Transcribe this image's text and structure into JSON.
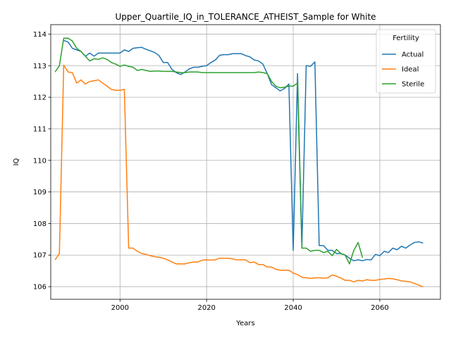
{
  "chart_data": {
    "type": "line",
    "title": "Upper_Quartile_IQ_in_TOLERANCE_ATHEIST_Sample for White",
    "xlabel": "Years",
    "ylabel": "IQ",
    "xlim": [
      1984,
      2074
    ],
    "ylim": [
      105.6,
      114.3
    ],
    "xticks": [
      1980,
      2000,
      2020,
      2040,
      2060
    ],
    "yticks": [
      106,
      107,
      108,
      109,
      110,
      111,
      112,
      113,
      114
    ],
    "grid": true,
    "legend": {
      "title": "Fertility",
      "position": "top-right"
    },
    "series": [
      {
        "name": "Actual",
        "color": "#1f77b4",
        "points": [
          [
            1987,
            113.8
          ],
          [
            1988,
            113.75
          ],
          [
            1989,
            113.55
          ],
          [
            1990,
            113.5
          ],
          [
            1991,
            113.45
          ],
          [
            1992,
            113.3
          ],
          [
            1993,
            113.4
          ],
          [
            1994,
            113.3
          ],
          [
            1995,
            113.4
          ],
          [
            1996,
            113.4
          ],
          [
            1997,
            113.4
          ],
          [
            1998,
            113.4
          ],
          [
            1999,
            113.4
          ],
          [
            2000,
            113.4
          ],
          [
            2001,
            113.5
          ],
          [
            2002,
            113.45
          ],
          [
            2003,
            113.55
          ],
          [
            2004,
            113.57
          ],
          [
            2005,
            113.58
          ],
          [
            2006,
            113.52
          ],
          [
            2007,
            113.47
          ],
          [
            2008,
            113.42
          ],
          [
            2009,
            113.32
          ],
          [
            2010,
            113.1
          ],
          [
            2011,
            113.1
          ],
          [
            2012,
            112.88
          ],
          [
            2013,
            112.78
          ],
          [
            2014,
            112.72
          ],
          [
            2015,
            112.8
          ],
          [
            2016,
            112.9
          ],
          [
            2017,
            112.95
          ],
          [
            2018,
            112.95
          ],
          [
            2019,
            112.98
          ],
          [
            2020,
            113.0
          ],
          [
            2021,
            113.1
          ],
          [
            2022,
            113.18
          ],
          [
            2023,
            113.33
          ],
          [
            2024,
            113.35
          ],
          [
            2025,
            113.35
          ],
          [
            2026,
            113.38
          ],
          [
            2027,
            113.38
          ],
          [
            2028,
            113.38
          ],
          [
            2029,
            113.32
          ],
          [
            2030,
            113.28
          ],
          [
            2031,
            113.18
          ],
          [
            2032,
            113.15
          ],
          [
            2033,
            113.05
          ],
          [
            2034,
            112.75
          ],
          [
            2035,
            112.4
          ],
          [
            2036,
            112.3
          ],
          [
            2037,
            112.2
          ],
          [
            2038,
            112.28
          ],
          [
            2039,
            112.42
          ],
          [
            2040,
            107.15
          ],
          [
            2041,
            112.75
          ],
          [
            2042,
            107.25
          ],
          [
            2043,
            113.0
          ],
          [
            2044,
            112.98
          ],
          [
            2045,
            113.12
          ],
          [
            2046,
            107.3
          ],
          [
            2047,
            107.3
          ],
          [
            2048,
            107.15
          ],
          [
            2049,
            107.15
          ],
          [
            2050,
            107.05
          ],
          [
            2051,
            107.05
          ],
          [
            2052,
            107.0
          ],
          [
            2053,
            106.9
          ],
          [
            2054,
            106.82
          ],
          [
            2055,
            106.85
          ],
          [
            2056,
            106.82
          ],
          [
            2057,
            106.86
          ],
          [
            2058,
            106.85
          ],
          [
            2059,
            107.02
          ],
          [
            2060,
            106.98
          ],
          [
            2061,
            107.12
          ],
          [
            2062,
            107.08
          ],
          [
            2063,
            107.22
          ],
          [
            2064,
            107.17
          ],
          [
            2065,
            107.28
          ],
          [
            2066,
            107.22
          ],
          [
            2067,
            107.32
          ],
          [
            2068,
            107.4
          ],
          [
            2069,
            107.42
          ],
          [
            2070,
            107.38
          ]
        ]
      },
      {
        "name": "Ideal",
        "color": "#ff7f0e",
        "points": [
          [
            1985,
            106.85
          ],
          [
            1986,
            107.05
          ],
          [
            1987,
            113.02
          ],
          [
            1988,
            112.8
          ],
          [
            1989,
            112.78
          ],
          [
            1990,
            112.45
          ],
          [
            1991,
            112.55
          ],
          [
            1992,
            112.42
          ],
          [
            1993,
            112.5
          ],
          [
            1994,
            112.52
          ],
          [
            1995,
            112.55
          ],
          [
            1996,
            112.45
          ],
          [
            1997,
            112.35
          ],
          [
            1998,
            112.25
          ],
          [
            1999,
            112.22
          ],
          [
            2000,
            112.22
          ],
          [
            2001,
            112.25
          ],
          [
            2002,
            107.22
          ],
          [
            2003,
            107.22
          ],
          [
            2004,
            107.12
          ],
          [
            2005,
            107.05
          ],
          [
            2006,
            107.02
          ],
          [
            2007,
            106.98
          ],
          [
            2008,
            106.95
          ],
          [
            2009,
            106.93
          ],
          [
            2010,
            106.9
          ],
          [
            2011,
            106.85
          ],
          [
            2012,
            106.78
          ],
          [
            2013,
            106.72
          ],
          [
            2014,
            106.72
          ],
          [
            2015,
            106.72
          ],
          [
            2016,
            106.76
          ],
          [
            2017,
            106.78
          ],
          [
            2018,
            106.78
          ],
          [
            2019,
            106.84
          ],
          [
            2020,
            106.85
          ],
          [
            2021,
            106.84
          ],
          [
            2022,
            106.85
          ],
          [
            2023,
            106.9
          ],
          [
            2024,
            106.9
          ],
          [
            2025,
            106.9
          ],
          [
            2026,
            106.88
          ],
          [
            2027,
            106.85
          ],
          [
            2028,
            106.85
          ],
          [
            2029,
            106.85
          ],
          [
            2030,
            106.76
          ],
          [
            2031,
            106.78
          ],
          [
            2032,
            106.7
          ],
          [
            2033,
            106.7
          ],
          [
            2034,
            106.62
          ],
          [
            2035,
            106.62
          ],
          [
            2036,
            106.55
          ],
          [
            2037,
            106.52
          ],
          [
            2038,
            106.52
          ],
          [
            2039,
            106.52
          ],
          [
            2040,
            106.43
          ],
          [
            2041,
            106.38
          ],
          [
            2042,
            106.3
          ],
          [
            2043,
            106.28
          ],
          [
            2044,
            106.26
          ],
          [
            2045,
            106.28
          ],
          [
            2046,
            106.28
          ],
          [
            2047,
            106.27
          ],
          [
            2048,
            106.28
          ],
          [
            2049,
            106.37
          ],
          [
            2050,
            106.33
          ],
          [
            2051,
            106.27
          ],
          [
            2052,
            106.2
          ],
          [
            2053,
            106.2
          ],
          [
            2054,
            106.15
          ],
          [
            2055,
            106.2
          ],
          [
            2056,
            106.18
          ],
          [
            2057,
            106.22
          ],
          [
            2058,
            106.2
          ],
          [
            2059,
            106.2
          ],
          [
            2060,
            106.23
          ],
          [
            2061,
            106.24
          ],
          [
            2062,
            106.26
          ],
          [
            2063,
            106.25
          ],
          [
            2064,
            106.22
          ],
          [
            2065,
            106.18
          ],
          [
            2066,
            106.17
          ],
          [
            2067,
            106.15
          ],
          [
            2068,
            106.1
          ],
          [
            2069,
            106.05
          ],
          [
            2070,
            105.99
          ]
        ]
      },
      {
        "name": "Sterile",
        "color": "#2ca02c",
        "points": [
          [
            1985,
            112.8
          ],
          [
            1986,
            113.0
          ],
          [
            1987,
            113.87
          ],
          [
            1988,
            113.87
          ],
          [
            1989,
            113.78
          ],
          [
            1990,
            113.55
          ],
          [
            1991,
            113.45
          ],
          [
            1992,
            113.3
          ],
          [
            1993,
            113.15
          ],
          [
            1994,
            113.22
          ],
          [
            1995,
            113.2
          ],
          [
            1996,
            113.25
          ],
          [
            1997,
            113.2
          ],
          [
            1998,
            113.1
          ],
          [
            1999,
            113.05
          ],
          [
            2000,
            112.98
          ],
          [
            2001,
            113.02
          ],
          [
            2002,
            112.98
          ],
          [
            2003,
            112.95
          ],
          [
            2004,
            112.85
          ],
          [
            2005,
            112.88
          ],
          [
            2006,
            112.85
          ],
          [
            2007,
            112.82
          ],
          [
            2008,
            112.83
          ],
          [
            2009,
            112.83
          ],
          [
            2010,
            112.82
          ],
          [
            2011,
            112.82
          ],
          [
            2012,
            112.82
          ],
          [
            2013,
            112.8
          ],
          [
            2014,
            112.78
          ],
          [
            2015,
            112.78
          ],
          [
            2016,
            112.8
          ],
          [
            2017,
            112.8
          ],
          [
            2018,
            112.8
          ],
          [
            2019,
            112.78
          ],
          [
            2020,
            112.78
          ],
          [
            2021,
            112.78
          ],
          [
            2022,
            112.78
          ],
          [
            2023,
            112.78
          ],
          [
            2024,
            112.78
          ],
          [
            2025,
            112.78
          ],
          [
            2026,
            112.78
          ],
          [
            2027,
            112.78
          ],
          [
            2028,
            112.78
          ],
          [
            2029,
            112.78
          ],
          [
            2030,
            112.78
          ],
          [
            2031,
            112.78
          ],
          [
            2032,
            112.8
          ],
          [
            2033,
            112.78
          ],
          [
            2034,
            112.75
          ],
          [
            2035,
            112.5
          ],
          [
            2036,
            112.35
          ],
          [
            2037,
            112.3
          ],
          [
            2038,
            112.32
          ],
          [
            2039,
            112.35
          ],
          [
            2040,
            112.35
          ],
          [
            2041,
            112.45
          ],
          [
            2042,
            107.22
          ],
          [
            2043,
            107.22
          ],
          [
            2044,
            107.12
          ],
          [
            2045,
            107.15
          ],
          [
            2046,
            107.15
          ],
          [
            2047,
            107.08
          ],
          [
            2048,
            107.12
          ],
          [
            2049,
            106.98
          ],
          [
            2050,
            107.18
          ],
          [
            2051,
            107.05
          ],
          [
            2052,
            107.0
          ],
          [
            2053,
            106.72
          ],
          [
            2054,
            107.15
          ],
          [
            2055,
            107.4
          ],
          [
            2056,
            106.92
          ]
        ]
      }
    ]
  }
}
